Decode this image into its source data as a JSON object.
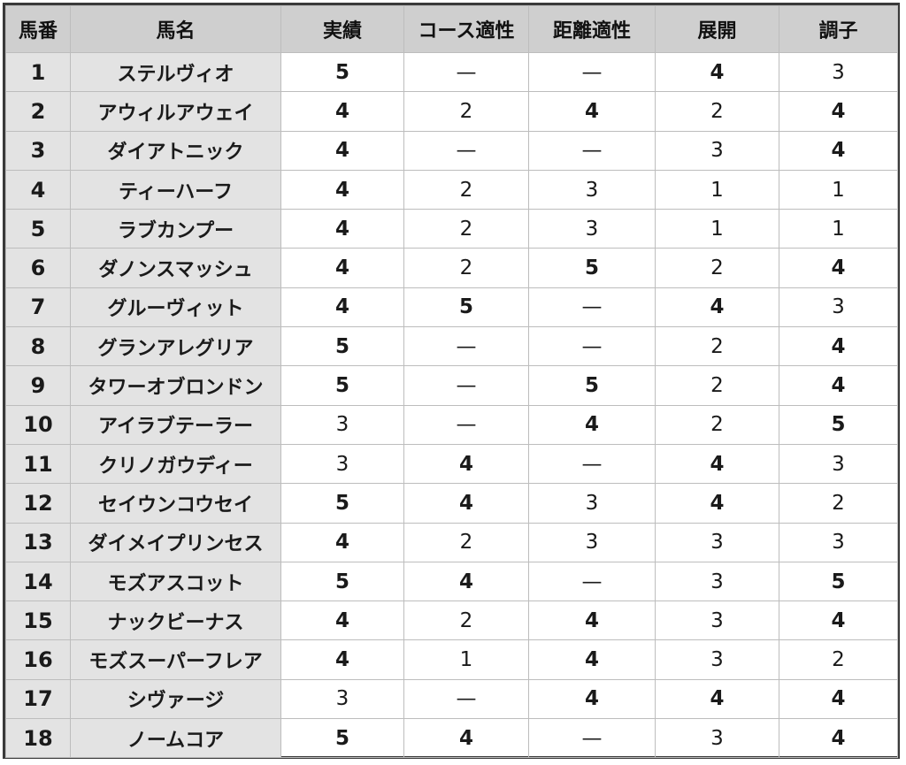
{
  "table": {
    "headers": [
      "馬番",
      "馬名",
      "実績",
      "コース適性",
      "距離適性",
      "展開",
      "調子"
    ],
    "rows": [
      {
        "no": "1",
        "name": "ステルヴィオ",
        "scores": [
          "5",
          "—",
          "—",
          "4",
          "3"
        ]
      },
      {
        "no": "2",
        "name": "アウィルアウェイ",
        "scores": [
          "4",
          "2",
          "4",
          "2",
          "4"
        ]
      },
      {
        "no": "3",
        "name": "ダイアトニック",
        "scores": [
          "4",
          "—",
          "—",
          "3",
          "4"
        ]
      },
      {
        "no": "4",
        "name": "ティーハーフ",
        "scores": [
          "4",
          "2",
          "3",
          "1",
          "1"
        ]
      },
      {
        "no": "5",
        "name": "ラブカンプー",
        "scores": [
          "4",
          "2",
          "3",
          "1",
          "1"
        ]
      },
      {
        "no": "6",
        "name": "ダノンスマッシュ",
        "scores": [
          "4",
          "2",
          "5",
          "2",
          "4"
        ]
      },
      {
        "no": "7",
        "name": "グルーヴィット",
        "scores": [
          "4",
          "5",
          "—",
          "4",
          "3"
        ]
      },
      {
        "no": "8",
        "name": "グランアレグリア",
        "scores": [
          "5",
          "—",
          "—",
          "2",
          "4"
        ]
      },
      {
        "no": "9",
        "name": "タワーオブロンドン",
        "scores": [
          "5",
          "—",
          "5",
          "2",
          "4"
        ]
      },
      {
        "no": "10",
        "name": "アイラブテーラー",
        "scores": [
          "3",
          "—",
          "4",
          "2",
          "5"
        ]
      },
      {
        "no": "11",
        "name": "クリノガウディー",
        "scores": [
          "3",
          "4",
          "—",
          "4",
          "3"
        ]
      },
      {
        "no": "12",
        "name": "セイウンコウセイ",
        "scores": [
          "5",
          "4",
          "3",
          "4",
          "2"
        ]
      },
      {
        "no": "13",
        "name": "ダイメイプリンセス",
        "scores": [
          "4",
          "2",
          "3",
          "3",
          "3"
        ]
      },
      {
        "no": "14",
        "name": "モズアスコット",
        "scores": [
          "5",
          "4",
          "—",
          "3",
          "5"
        ]
      },
      {
        "no": "15",
        "name": "ナックビーナス",
        "scores": [
          "4",
          "2",
          "4",
          "3",
          "4"
        ]
      },
      {
        "no": "16",
        "name": "モズスーパーフレア",
        "scores": [
          "4",
          "1",
          "4",
          "3",
          "2"
        ]
      },
      {
        "no": "17",
        "name": "シヴァージ",
        "scores": [
          "3",
          "—",
          "4",
          "4",
          "4"
        ]
      },
      {
        "no": "18",
        "name": "ノームコア",
        "scores": [
          "5",
          "4",
          "—",
          "3",
          "4"
        ]
      }
    ]
  },
  "colors": {
    "score_5": "#d81919",
    "score_4": "#1f6db5",
    "default_text": "#1a1a1a",
    "header_bg": "#cfcfcf",
    "label_bg": "#e3e3e3"
  }
}
